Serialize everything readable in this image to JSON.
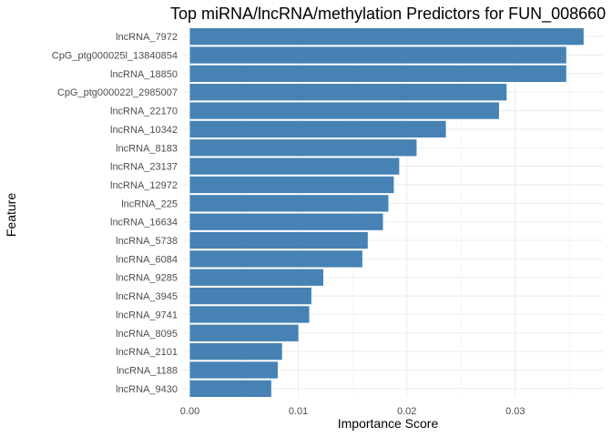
{
  "chart_data": {
    "type": "bar",
    "orientation": "horizontal",
    "title": "Top miRNA/lncRNA/methylation Predictors for FUN_008660",
    "xlabel": "Importance Score",
    "ylabel": "Feature",
    "xlim": [
      0,
      0.037
    ],
    "xticks": [
      0.0,
      0.01,
      0.02,
      0.03
    ],
    "xtick_labels": [
      "0.00",
      "0.01",
      "0.02",
      "0.03"
    ],
    "grid": true,
    "bar_color": "#4682B4",
    "categories": [
      "lncRNA_7972",
      "CpG_ptg000025l_13840854",
      "lncRNA_18850",
      "CpG_ptg000022l_2985007",
      "lncRNA_22170",
      "lncRNA_10342",
      "lncRNA_8183",
      "lncRNA_23137",
      "lncRNA_12972",
      "lncRNA_225",
      "lncRNA_16634",
      "lncRNA_5738",
      "lncRNA_6084",
      "lncRNA_9285",
      "lncRNA_3945",
      "lncRNA_9741",
      "lncRNA_8095",
      "lncRNA_2101",
      "lncRNA_1188",
      "lncRNA_9430"
    ],
    "values": [
      0.0363,
      0.0347,
      0.0347,
      0.0292,
      0.0285,
      0.0236,
      0.0209,
      0.0193,
      0.0188,
      0.0183,
      0.0178,
      0.0164,
      0.0159,
      0.0123,
      0.0112,
      0.011,
      0.01,
      0.0085,
      0.0081,
      0.0075
    ]
  }
}
